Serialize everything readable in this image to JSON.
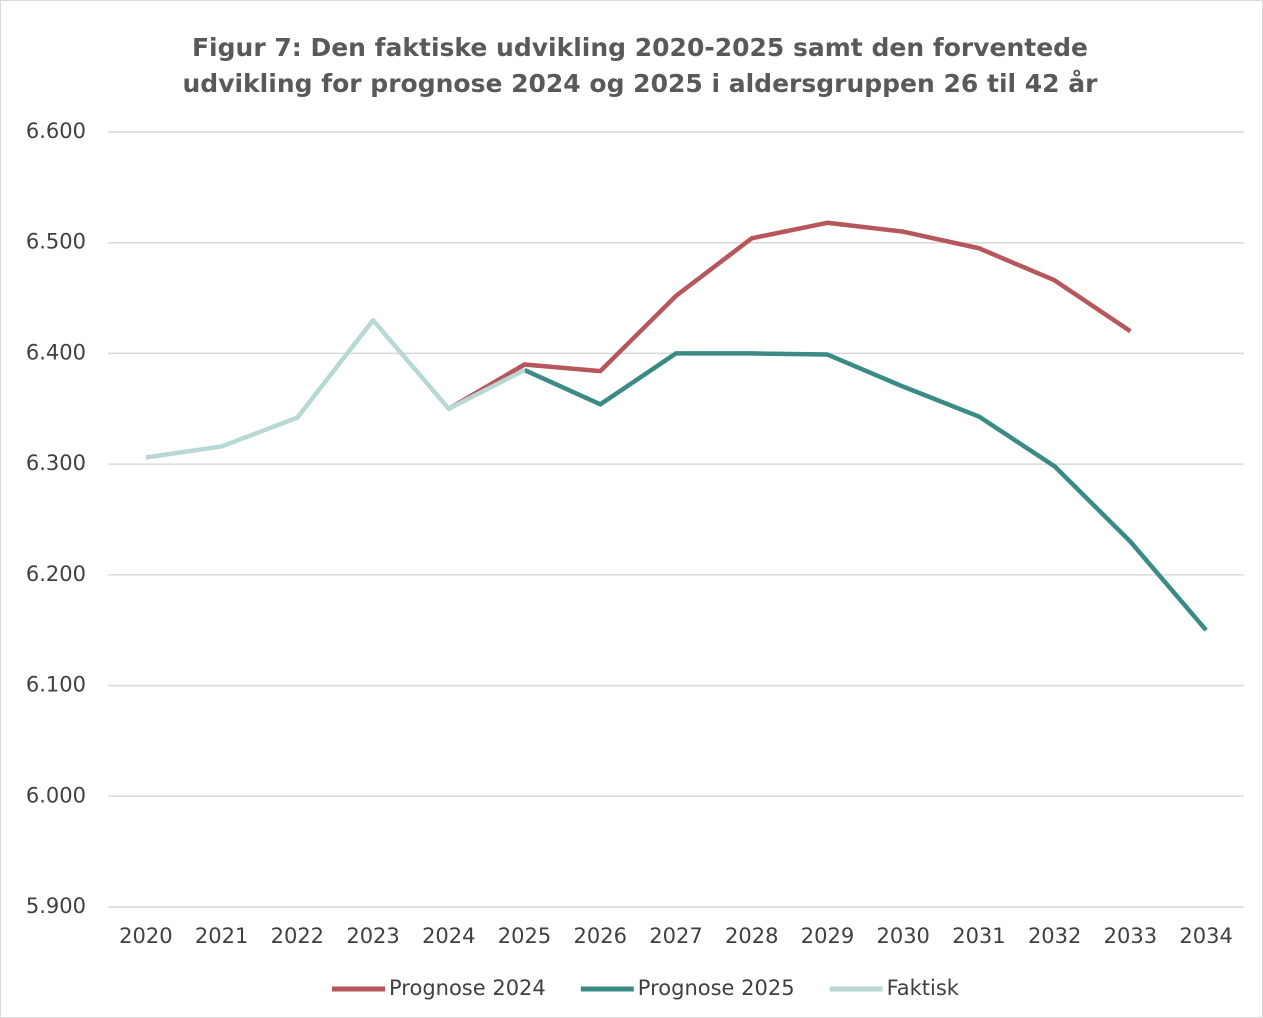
{
  "chart_data": {
    "type": "line",
    "title": "Figur 7: Den faktiske udvikling 2020-2025 samt den forventede udvikling for prognose 2024 og 2025 i aldersgruppen 26 til 42 år",
    "categories": [
      "2020",
      "2021",
      "2022",
      "2023",
      "2024",
      "2025",
      "2026",
      "2027",
      "2028",
      "2029",
      "2030",
      "2031",
      "2032",
      "2033",
      "2034"
    ],
    "series": [
      {
        "name": "Prognose 2024",
        "color": "#b5575c",
        "values": [
          null,
          null,
          null,
          null,
          6350,
          6390,
          6384,
          6452,
          6504,
          6518,
          6510,
          6495,
          6466,
          6420,
          null
        ]
      },
      {
        "name": "Prognose 2025",
        "color": "#3a8a85",
        "values": [
          null,
          null,
          null,
          null,
          null,
          6385,
          6354,
          6400,
          6400,
          6399,
          6370,
          6343,
          6298,
          6230,
          6150
        ]
      },
      {
        "name": "Faktisk",
        "color": "#b8d8d6",
        "values": [
          6306,
          6316,
          6342,
          6430,
          6350,
          6385,
          null,
          null,
          null,
          null,
          null,
          null,
          null,
          null,
          null
        ]
      }
    ],
    "ylim": [
      5900,
      6600
    ],
    "yticks": [
      {
        "value": 5900,
        "label": "5.900"
      },
      {
        "value": 6000,
        "label": "6.000"
      },
      {
        "value": 6100,
        "label": "6.100"
      },
      {
        "value": 6200,
        "label": "6.200"
      },
      {
        "value": 6300,
        "label": "6.300"
      },
      {
        "value": 6400,
        "label": "6.400"
      },
      {
        "value": 6500,
        "label": "6.500"
      },
      {
        "value": 6600,
        "label": "6.600"
      }
    ],
    "grid": true,
    "legend": "bottom"
  }
}
